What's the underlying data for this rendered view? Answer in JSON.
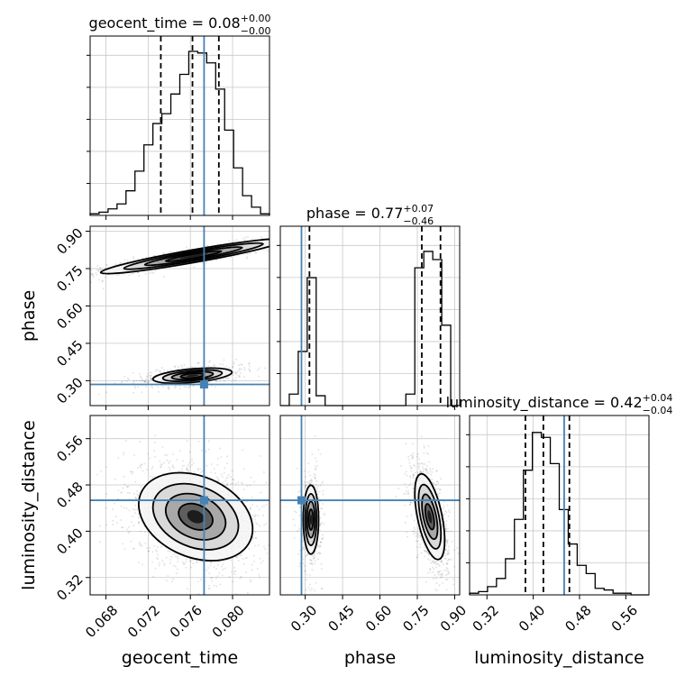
{
  "chart_data": {
    "type": "corner",
    "truth_color": "#4682b4",
    "parameters": [
      {
        "name": "geocent_time",
        "axis_label": "geocent_time",
        "title_main": "geocent_time = 0.08",
        "title_plus": "+0.00",
        "title_minus": "−0.00",
        "range": [
          0.0665,
          0.0835
        ],
        "ticks": [
          0.068,
          0.072,
          0.076,
          0.08
        ],
        "tick_labels": [
          "0.068",
          "0.072",
          "0.076",
          "0.080"
        ],
        "truth": 0.0773,
        "quantiles": [
          0.0732,
          0.0762,
          0.0787
        ],
        "hist": [
          0.01,
          0.02,
          0.04,
          0.07,
          0.15,
          0.27,
          0.43,
          0.56,
          0.62,
          0.74,
          0.86,
          1.0,
          0.99,
          0.93,
          0.77,
          0.52,
          0.29,
          0.12,
          0.05,
          0.01
        ]
      },
      {
        "name": "phase",
        "axis_label": "phase",
        "title_main": "phase = 0.77",
        "title_plus": "+0.07",
        "title_minus": "−0.46",
        "range": [
          0.2,
          0.92
        ],
        "ticks": [
          0.3,
          0.45,
          0.6,
          0.75,
          0.9
        ],
        "tick_labels": [
          "0.30",
          "0.45",
          "0.60",
          "0.75",
          "0.90"
        ],
        "truth": 0.285,
        "quantiles": [
          0.317,
          0.768,
          0.843
        ],
        "hist": [
          0.0,
          0.07,
          0.33,
          0.78,
          0.06,
          0.0,
          0.0,
          0.0,
          0.0,
          0.0,
          0.0,
          0.0,
          0.0,
          0.0,
          0.07,
          0.84,
          0.94,
          0.89,
          0.49,
          0.0
        ]
      },
      {
        "name": "luminosity_distance",
        "axis_label": "luminosity_distance",
        "title_main": "luminosity_distance = 0.42",
        "title_plus": "+0.04",
        "title_minus": "−0.04",
        "range": [
          0.29,
          0.6
        ],
        "ticks": [
          0.32,
          0.4,
          0.48,
          0.56
        ],
        "tick_labels": [
          "0.32",
          "0.40",
          "0.48",
          "0.56"
        ],
        "truth": 0.4535,
        "quantiles": [
          0.3865,
          0.4175,
          0.4625
        ],
        "hist": [
          0.01,
          0.02,
          0.05,
          0.1,
          0.22,
          0.46,
          0.76,
          0.99,
          0.96,
          0.8,
          0.52,
          0.31,
          0.18,
          0.13,
          0.04,
          0.03,
          0.01,
          0.01,
          0.0,
          0.0
        ]
      }
    ],
    "pairs": [
      {
        "x": "geocent_time",
        "y": "phase",
        "blobs": [
          {
            "cx": 0.0763,
            "cy": 0.8,
            "sx": 0.0044,
            "sy": 0.035,
            "rho": 0.93,
            "w": 1.0
          },
          {
            "cx": 0.0762,
            "cy": 0.32,
            "sx": 0.0022,
            "sy": 0.018,
            "rho": 0.45,
            "w": 0.55
          }
        ]
      },
      {
        "x": "geocent_time",
        "y": "luminosity_distance",
        "blobs": [
          {
            "cx": 0.0765,
            "cy": 0.425,
            "sx": 0.0027,
            "sy": 0.038,
            "rho": -0.28,
            "w": 1.0
          }
        ]
      },
      {
        "x": "phase",
        "y": "luminosity_distance",
        "blobs": [
          {
            "cx": 0.8,
            "cy": 0.425,
            "sx": 0.03,
            "sy": 0.037,
            "rho": -0.55,
            "w": 1.0
          },
          {
            "cx": 0.323,
            "cy": 0.42,
            "sx": 0.018,
            "sy": 0.035,
            "rho": 0.0,
            "w": 0.45
          }
        ]
      }
    ]
  }
}
